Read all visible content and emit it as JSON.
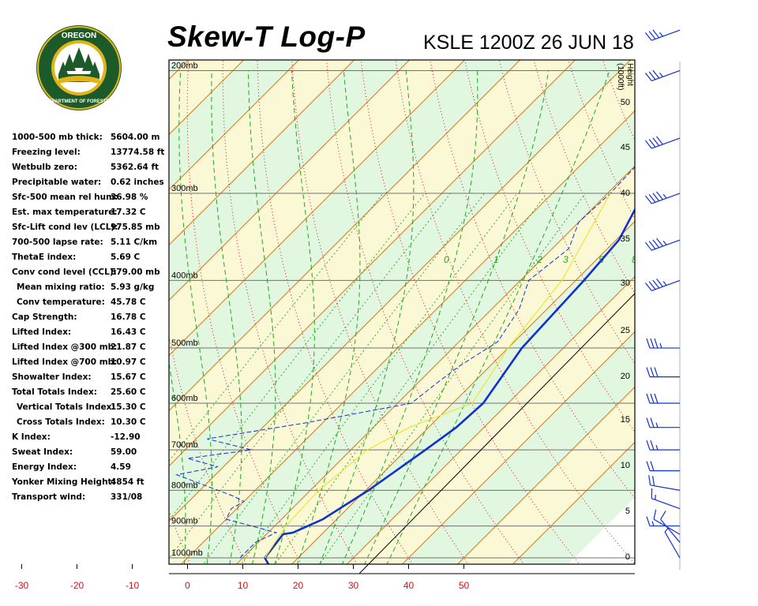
{
  "logo": {
    "top_text": "OREGON",
    "ring_text": "DEPARTMENT OF FORESTRY",
    "colors": {
      "ring": "#1d5a2a",
      "gold": "#e2b516",
      "sky": "#ffffff"
    }
  },
  "header": {
    "title": "Skew-T Log-P",
    "subtitle": "KSLE 1200Z 26 JUN 18"
  },
  "indices": [
    {
      "label": "1000-500 mb thick:",
      "value": "5604.00 m"
    },
    {
      "label": "Freezing level:",
      "value": "13774.58 ft"
    },
    {
      "label": "Wetbulb zero:",
      "value": "5362.64 ft"
    },
    {
      "label": "Precipitable water:",
      "value": "0.62 inches"
    },
    {
      "label": "Sfc-500 mean rel hum:",
      "value": "36.98 %"
    },
    {
      "label": "Est. max temperature:",
      "value": "17.32 C"
    },
    {
      "label": "Sfc-Lift cond lev (LCL):",
      "value": "975.85 mb"
    },
    {
      "label": "700-500 lapse rate:",
      "value": "5.11 C/km"
    },
    {
      "label": "ThetaE index:",
      "value": "5.69 C"
    },
    {
      "label": "Conv cond level (CCL):",
      "value": "579.00 mb"
    },
    {
      "label": "Mean mixing ratio:",
      "value": "5.93 g/kg",
      "indent": true
    },
    {
      "label": "Conv temperature:",
      "value": "45.78 C",
      "indent": true
    },
    {
      "label": "Cap Strength:",
      "value": "16.78 C"
    },
    {
      "label": "Lifted Index:",
      "value": "16.43 C"
    },
    {
      "label": "Lifted Index @300 mb:",
      "value": "21.87 C"
    },
    {
      "label": "Lifted Index @700 mb:",
      "value": "10.97 C"
    },
    {
      "label": "Showalter Index:",
      "value": "15.67 C"
    },
    {
      "label": "Total Totals Index:",
      "value": "25.60 C"
    },
    {
      "label": "Vertical Totals Index:",
      "value": "15.30 C",
      "indent": true
    },
    {
      "label": "Cross Totals Index:",
      "value": "10.30 C",
      "indent": true
    },
    {
      "label": "K Index:",
      "value": "-12.90"
    },
    {
      "label": "Sweat Index:",
      "value": "59.00"
    },
    {
      "label": "Energy Index:",
      "value": "4.59"
    },
    {
      "label": "Yonker Mixing Height:",
      "value": "4854 ft"
    },
    {
      "label": "Transport wind:",
      "value": "331/08"
    }
  ],
  "chart_data": {
    "type": "line",
    "title": "Skew-T Log-P",
    "subtitle": "KSLE 1200Z 26 JUN 18",
    "x_axis": {
      "range": [
        -30,
        50
      ],
      "ticks": [
        -30,
        -20,
        -10,
        0,
        10,
        20,
        30,
        40,
        50
      ],
      "unit": "C"
    },
    "pressure_levels": [
      {
        "p": 200,
        "label": "200mb"
      },
      {
        "p": 300,
        "label": "300mb"
      },
      {
        "p": 400,
        "label": "400mb"
      },
      {
        "p": 500,
        "label": "500mb"
      },
      {
        "p": 600,
        "label": "600mb"
      },
      {
        "p": 700,
        "label": "700mb"
      },
      {
        "p": 800,
        "label": "800mb"
      },
      {
        "p": 900,
        "label": "900mb"
      },
      {
        "p": 1000,
        "label": "1000mb"
      }
    ],
    "height_axis": {
      "label_line1": "Height",
      "label_line2": "(1000ft)",
      "ticks": [
        0,
        5,
        10,
        15,
        20,
        25,
        30,
        35,
        40,
        45,
        50
      ]
    },
    "mixing_ratio_labels": [
      "0",
      "1",
      "2",
      "3",
      "5",
      "8"
    ],
    "series": [
      {
        "key": "temperature",
        "style": "solid",
        "color": "#1030d0",
        "points": [
          [
            1030,
            16.5
          ],
          [
            1000,
            14.0
          ],
          [
            925,
            13.0
          ],
          [
            920,
            14.5
          ],
          [
            880,
            17.5
          ],
          [
            800,
            20.5
          ],
          [
            700,
            23.5
          ],
          [
            650,
            25.0
          ],
          [
            600,
            25.5
          ],
          [
            500,
            22.5
          ],
          [
            400,
            21.5
          ],
          [
            350,
            20.5
          ],
          [
            300,
            16.5
          ],
          [
            250,
            13.0
          ],
          [
            200,
            10.5
          ],
          [
            175,
            12.0
          ],
          [
            160,
            18.0
          ],
          [
            150,
            21.0
          ],
          [
            140,
            22.5
          ],
          [
            120,
            25.0
          ],
          [
            110,
            27.0
          ],
          [
            100,
            32.0
          ]
        ]
      },
      {
        "key": "dewpoint",
        "style": "dashed",
        "color": "#1030d0",
        "points": [
          [
            1000,
            9.5
          ],
          [
            950,
            9.5
          ],
          [
            920,
            11.5
          ],
          [
            880,
            0.0
          ],
          [
            850,
            -1.0
          ],
          [
            830,
            0.0
          ],
          [
            815,
            -3.0
          ],
          [
            760,
            -17.0
          ],
          [
            740,
            -11.0
          ],
          [
            720,
            -18.0
          ],
          [
            700,
            -8.0
          ],
          [
            675,
            -18.0
          ],
          [
            640,
            -3.0
          ],
          [
            600,
            12.5
          ],
          [
            560,
            13.5
          ],
          [
            530,
            14.5
          ],
          [
            490,
            17.0
          ],
          [
            440,
            15.0
          ],
          [
            400,
            11.5
          ],
          [
            360,
            13.0
          ],
          [
            330,
            10.0
          ],
          [
            300,
            10.5
          ],
          [
            260,
            10.0
          ],
          [
            230,
            15.0
          ],
          [
            200,
            10.0
          ],
          [
            170,
            -2.0
          ],
          [
            150,
            -6.0
          ],
          [
            135,
            -8.0
          ],
          [
            120,
            0.0
          ],
          [
            100,
            4.0
          ]
        ]
      },
      {
        "key": "parcel",
        "style": "solid",
        "color": "#e8e830",
        "points": [
          [
            1000,
            14.0
          ],
          [
            975,
            13.5
          ],
          [
            900,
            12.0
          ],
          [
            800,
            11.5
          ],
          [
            700,
            13.0
          ],
          [
            650,
            16.5
          ],
          [
            600,
            23.5
          ],
          [
            500,
            20.0
          ],
          [
            400,
            17.5
          ],
          [
            300,
            10.5
          ]
        ]
      }
    ],
    "wind_barbs": [
      {
        "p": 1000,
        "dir": 330,
        "spd": 5
      },
      {
        "p": 950,
        "dir": 320,
        "spd": 10
      },
      {
        "p": 925,
        "dir": 300,
        "spd": 10
      },
      {
        "p": 900,
        "dir": 270,
        "spd": 15
      },
      {
        "p": 850,
        "dir": 290,
        "spd": 15
      },
      {
        "p": 800,
        "dir": 280,
        "spd": 20
      },
      {
        "p": 750,
        "dir": 270,
        "spd": 20
      },
      {
        "p": 700,
        "dir": 270,
        "spd": 25
      },
      {
        "p": 650,
        "dir": 270,
        "spd": 25
      },
      {
        "p": 600,
        "dir": 270,
        "spd": 30
      },
      {
        "p": 550,
        "dir": 270,
        "spd": 30
      },
      {
        "p": 500,
        "dir": 270,
        "spd": 35
      },
      {
        "p": 400,
        "dir": 250,
        "spd": 45
      },
      {
        "p": 350,
        "dir": 250,
        "spd": 45
      },
      {
        "p": 300,
        "dir": 250,
        "spd": 45
      },
      {
        "p": 250,
        "dir": 250,
        "spd": 40
      },
      {
        "p": 200,
        "dir": 250,
        "spd": 35
      },
      {
        "p": 175,
        "dir": 250,
        "spd": 35
      },
      {
        "p": 150,
        "dir": 250,
        "spd": 40
      },
      {
        "p": 125,
        "dir": 250,
        "spd": 45
      },
      {
        "p": 110,
        "dir": 250,
        "spd": 45
      },
      {
        "p": 100,
        "dir": 250,
        "spd": 40
      }
    ],
    "colors": {
      "band_green": "#e2f7e0",
      "band_yellow": "#fbf8d6",
      "isotherm": "#e07818",
      "dry_adiabat": "#d81818",
      "moist_adiabat": "#20a820",
      "mixing_ratio": "#20a820",
      "isobar": "#707070",
      "tick_label": "#c81818"
    }
  }
}
